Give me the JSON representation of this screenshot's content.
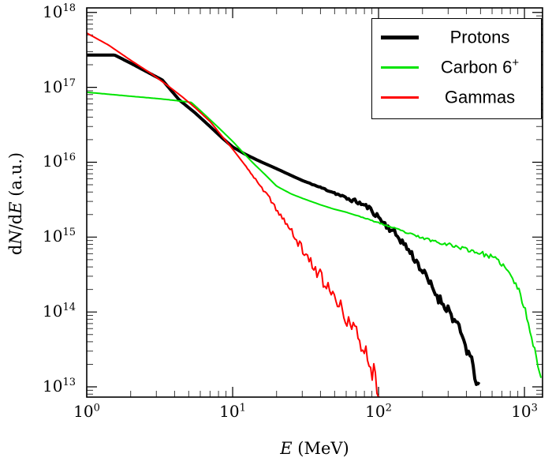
{
  "figure": {
    "background": "#ffffff",
    "border_color": "#000000",
    "tick_color": "#3a3a3a"
  },
  "axes": {
    "xlabel": {
      "italic": "E",
      "rest": " (MeV)"
    },
    "ylabel": {
      "d1": "d",
      "N": "N",
      "mid": "/d",
      "E": "E",
      "rest": " (a.u.)"
    },
    "x_ticks": [
      {
        "base": "10",
        "exp": "0",
        "value": 1
      },
      {
        "base": "10",
        "exp": "1",
        "value": 10
      },
      {
        "base": "10",
        "exp": "2",
        "value": 100
      },
      {
        "base": "10",
        "exp": "3",
        "value": 1000
      }
    ],
    "y_ticks": [
      {
        "base": "10",
        "exp": "13",
        "value": 10000000000000.0
      },
      {
        "base": "10",
        "exp": "14",
        "value": 100000000000000.0
      },
      {
        "base": "10",
        "exp": "15",
        "value": 1000000000000000.0
      },
      {
        "base": "10",
        "exp": "16",
        "value": 1e+16
      },
      {
        "base": "10",
        "exp": "17",
        "value": 1e+17
      },
      {
        "base": "10",
        "exp": "18",
        "value": 1e+18
      }
    ]
  },
  "legend": {
    "position": "upper right",
    "items": [
      {
        "label": "Protons",
        "sup": ""
      },
      {
        "label": "Carbon 6",
        "sup": "+"
      },
      {
        "label": "Gammas",
        "sup": ""
      }
    ]
  },
  "chart_data": {
    "type": "line",
    "title": "",
    "xlabel": "E (MeV)",
    "ylabel": "dN/dE (a.u.)",
    "xscale": "log",
    "yscale": "log",
    "xlim": [
      1,
      1330
    ],
    "ylim": [
      10000000000000.0,
      1e+18
    ],
    "grid": false,
    "legend_position": "upper right",
    "series": [
      {
        "name": "Protons",
        "color": "#000000",
        "line_width": 4,
        "noise": {
          "start": 30,
          "amp": 0.09
        },
        "seed": 11,
        "points": [
          [
            1,
            2.7e+17
          ],
          [
            1.55,
            2.7e+17
          ],
          [
            2,
            2.1e+17
          ],
          [
            2.6,
            1.6e+17
          ],
          [
            3.3,
            1.25e+17
          ],
          [
            4.3,
            6.8e+16
          ],
          [
            5.5,
            4.6e+16
          ],
          [
            7,
            3e+16
          ],
          [
            8.5,
            2.1e+16
          ],
          [
            10,
            1.6e+16
          ],
          [
            12,
            1.3e+16
          ],
          [
            15,
            1.05e+16
          ],
          [
            20,
            8200000000000000.0
          ],
          [
            25,
            6700000000000000.0
          ],
          [
            30,
            5700000000000000.0
          ],
          [
            40,
            4600000000000000.0
          ],
          [
            50,
            3900000000000000.0
          ],
          [
            60,
            3300000000000000.0
          ],
          [
            70,
            3000000000000000.0
          ],
          [
            85,
            2500000000000000.0
          ],
          [
            100,
            1850000000000000.0
          ],
          [
            110,
            1500000000000000.0
          ],
          [
            125,
            1200000000000000.0
          ],
          [
            140,
            950000000000000.0
          ],
          [
            160,
            680000000000000.0
          ],
          [
            180,
            490000000000000.0
          ],
          [
            200,
            350000000000000.0
          ],
          [
            230,
            220000000000000.0
          ],
          [
            260,
            150000000000000.0
          ],
          [
            300,
            110000000000000.0
          ],
          [
            340,
            70000000000000.0
          ],
          [
            380,
            43000000000000.0
          ],
          [
            420,
            26000000000000.0
          ],
          [
            460,
            14000000000000.0
          ],
          [
            500,
            8000000000000.0
          ]
        ]
      },
      {
        "name": "Carbon 6+",
        "color": "#00e400",
        "line_width": 2,
        "noise": {
          "start": 60,
          "amp": 0.045
        },
        "seed": 23,
        "points": [
          [
            1,
            8.6e+16
          ],
          [
            1.5,
            8e+16
          ],
          [
            2,
            7.6e+16
          ],
          [
            3,
            7.1e+16
          ],
          [
            4,
            6.7e+16
          ],
          [
            5.2,
            6.3e+16
          ],
          [
            6,
            4.9e+16
          ],
          [
            7,
            3.7e+16
          ],
          [
            8,
            2.9e+16
          ],
          [
            10,
            1.9e+16
          ],
          [
            12,
            1.3e+16
          ],
          [
            14,
            9500000000000000.0
          ],
          [
            17,
            6600000000000000.0
          ],
          [
            20,
            4800000000000000.0
          ],
          [
            25,
            3800000000000000.0
          ],
          [
            30,
            3300000000000000.0
          ],
          [
            40,
            2700000000000000.0
          ],
          [
            50,
            2350000000000000.0
          ],
          [
            60,
            2150000000000000.0
          ],
          [
            80,
            1800000000000000.0
          ],
          [
            100,
            1550000000000000.0
          ],
          [
            130,
            1300000000000000.0
          ],
          [
            160,
            1120000000000000.0
          ],
          [
            200,
            970000000000000.0
          ],
          [
            250,
            870000000000000.0
          ],
          [
            300,
            800000000000000.0
          ],
          [
            400,
            690000000000000.0
          ],
          [
            500,
            610000000000000.0
          ],
          [
            600,
            540000000000000.0
          ],
          [
            700,
            440000000000000.0
          ],
          [
            800,
            310000000000000.0
          ],
          [
            900,
            210000000000000.0
          ],
          [
            1000,
            115000000000000.0
          ],
          [
            1100,
            55000000000000.0
          ],
          [
            1200,
            26000000000000.0
          ],
          [
            1300,
            12000000000000.0
          ],
          [
            1330,
            9000000000000.0
          ]
        ]
      },
      {
        "name": "Gammas",
        "color": "#ff0000",
        "line_width": 2,
        "noise": {
          "start": 12,
          "amp": 0.16
        },
        "seed": 37,
        "points": [
          [
            1,
            5.3e+17
          ],
          [
            1.4,
            3.7e+17
          ],
          [
            2,
            2.3e+17
          ],
          [
            2.8,
            1.5e+17
          ],
          [
            3.6,
            1.05e+17
          ],
          [
            4.5,
            7.5e+16
          ],
          [
            5.5,
            5.4e+16
          ],
          [
            7,
            3.5e+16
          ],
          [
            8.5,
            2.2e+16
          ],
          [
            10,
            1.5e+16
          ],
          [
            12.5,
            8500000000000000.0
          ],
          [
            15,
            5200000000000000.0
          ],
          [
            18,
            3200000000000000.0
          ],
          [
            22,
            1800000000000000.0
          ],
          [
            27,
            950000000000000.0
          ],
          [
            33,
            520000000000000.0
          ],
          [
            40,
            300000000000000.0
          ],
          [
            48,
            170000000000000.0
          ],
          [
            57,
            100000000000000.0
          ],
          [
            67,
            60000000000000.0
          ],
          [
            78,
            35000000000000.0
          ],
          [
            88,
            20000000000000.0
          ],
          [
            97,
            12000000000000.0
          ],
          [
            105,
            7500000000000.0
          ]
        ]
      }
    ]
  }
}
